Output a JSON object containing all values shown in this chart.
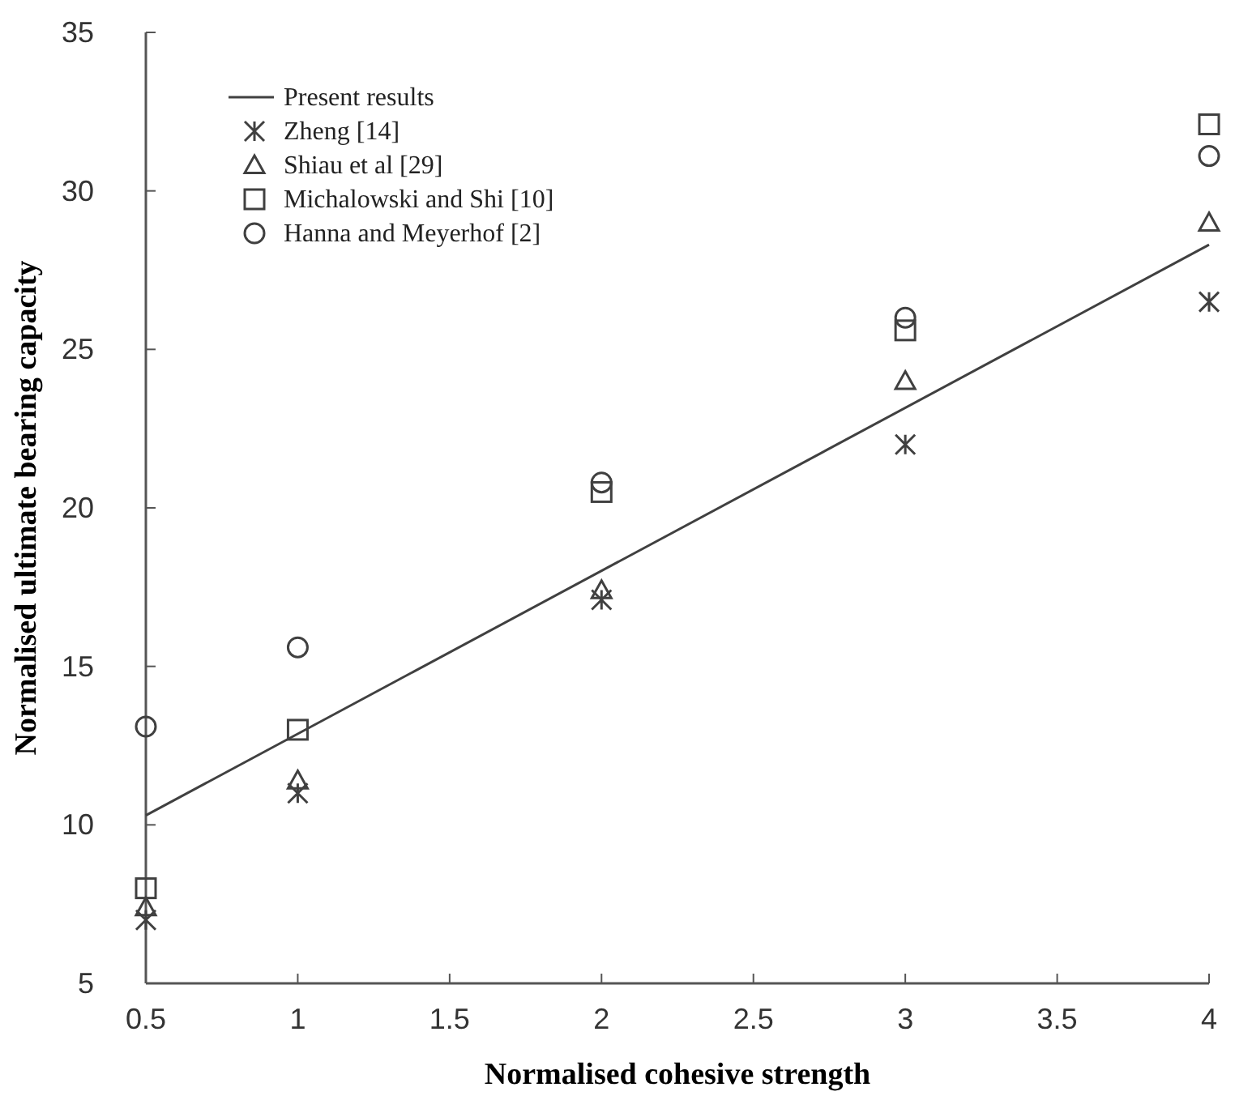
{
  "chart_data": {
    "type": "scatter",
    "xlabel": "Normalised cohesive strength",
    "ylabel": "Normalised ultimate bearing capacity",
    "xlim": [
      0.5,
      4
    ],
    "ylim": [
      5,
      35
    ],
    "xticks": [
      0.5,
      1,
      1.5,
      2,
      2.5,
      3,
      3.5,
      4
    ],
    "yticks": [
      5,
      10,
      15,
      20,
      25,
      30,
      35
    ],
    "grid": false,
    "legend": "top left",
    "series": [
      {
        "name": "Present results",
        "type": "line",
        "color": "#404040",
        "marker": "none",
        "x": [
          0.5,
          4
        ],
        "values": [
          10.3,
          28.3
        ]
      },
      {
        "name": "Zheng [14]",
        "color": "#404040",
        "marker": "cross",
        "x": [
          0.5,
          1,
          2,
          3,
          4
        ],
        "values": [
          7,
          11,
          17.1,
          22,
          26.5
        ]
      },
      {
        "name": "Shiau et al [29]",
        "color": "#404040",
        "marker": "triangle",
        "x": [
          0.5,
          1,
          2,
          3,
          4
        ],
        "values": [
          7.4,
          11.4,
          17.4,
          24,
          29
        ]
      },
      {
        "name": "Michalowski and Shi  [10]",
        "color": "#404040",
        "marker": "square",
        "x": [
          0.5,
          1,
          2,
          3,
          4
        ],
        "values": [
          8,
          13,
          20.5,
          25.6,
          32.1
        ]
      },
      {
        "name": "Hanna and Meyerhof [2]",
        "color": "#404040",
        "marker": "circle",
        "x": [
          0.5,
          1,
          2,
          3,
          4
        ],
        "values": [
          13.1,
          15.6,
          20.8,
          26,
          31.1
        ]
      }
    ]
  }
}
